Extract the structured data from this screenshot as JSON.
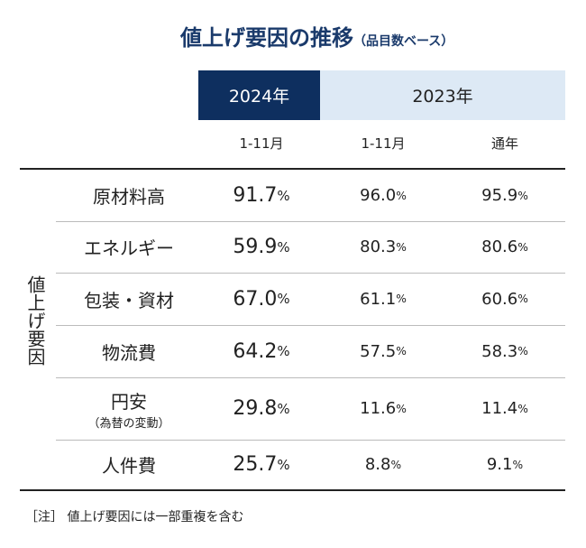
{
  "title": "値上げ要因の推移",
  "subtitle": "（品目数ベース）",
  "header": {
    "years": [
      "2024年",
      "2023年"
    ],
    "periods": [
      "1-11月",
      "1-11月",
      "通年"
    ]
  },
  "group_label": "値上げ要因",
  "table": {
    "rows": [
      {
        "label": "原材料高",
        "values": [
          "91.7%",
          "96.0%",
          "95.9%"
        ]
      },
      {
        "label": "エネルギー",
        "values": [
          "59.9%",
          "80.3%",
          "80.6%"
        ]
      },
      {
        "label": "包装・資材",
        "values": [
          "67.0%",
          "61.1%",
          "60.6%"
        ]
      },
      {
        "label": "物流費",
        "values": [
          "64.2%",
          "57.5%",
          "58.3%"
        ]
      },
      {
        "label": "円安",
        "sublabel": "（為替の変動）",
        "values": [
          "29.8%",
          "11.6%",
          "11.4%"
        ]
      },
      {
        "label": "人件費",
        "values": [
          "25.7%",
          "8.8%",
          "9.1%"
        ]
      }
    ]
  },
  "note": "［注］ 値上げ要因には一部重複を含む"
}
